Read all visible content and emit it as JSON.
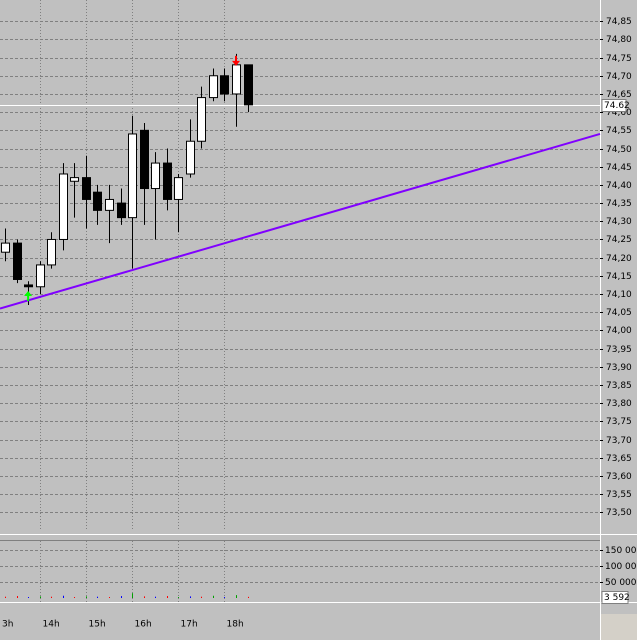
{
  "chart_data": [
    {
      "type": "candlestick",
      "categories": [
        "3h",
        null,
        null,
        "14h",
        null,
        null,
        null,
        "15h",
        null,
        null,
        null,
        "16h",
        null,
        null,
        null,
        "17h",
        null,
        null,
        null,
        "18h",
        null,
        null
      ],
      "open": [
        74.215,
        74.24,
        74.125,
        74.12,
        74.18,
        74.25,
        74.41,
        74.42,
        74.38,
        74.33,
        74.35,
        74.31,
        74.55,
        74.39,
        74.46,
        74.36,
        74.43,
        74.52,
        74.64,
        74.7,
        74.65,
        74.73
      ],
      "high": [
        74.28,
        74.25,
        74.135,
        74.19,
        74.27,
        74.46,
        74.46,
        74.48,
        74.4,
        74.4,
        74.39,
        74.59,
        74.57,
        74.49,
        74.5,
        74.43,
        74.58,
        74.67,
        74.72,
        74.72,
        74.76,
        74.73
      ],
      "low": [
        74.19,
        74.13,
        74.07,
        74.1,
        74.17,
        74.22,
        74.31,
        74.28,
        74.29,
        74.24,
        74.29,
        74.17,
        74.29,
        74.25,
        74.33,
        74.27,
        74.42,
        74.5,
        74.63,
        74.63,
        74.56,
        74.6
      ],
      "close": [
        74.24,
        74.14,
        74.12,
        74.18,
        74.25,
        74.43,
        74.42,
        74.36,
        74.33,
        74.36,
        74.31,
        74.54,
        74.39,
        74.46,
        74.36,
        74.42,
        74.52,
        74.64,
        74.7,
        74.65,
        74.73,
        74.62
      ],
      "up_color": "#ffffff",
      "down_color": "#000000",
      "ylim": [
        73.45,
        74.9
      ],
      "yticks": [
        {
          "value": 74.85,
          "label": "74,85"
        },
        {
          "value": 74.8,
          "label": "74,80"
        },
        {
          "value": 74.75,
          "label": "74,75"
        },
        {
          "value": 74.7,
          "label": "74,70"
        },
        {
          "value": 74.65,
          "label": "74,65"
        },
        {
          "value": 74.6,
          "label": "74,60"
        },
        {
          "value": 74.55,
          "label": "74,55"
        },
        {
          "value": 74.5,
          "label": "74,50"
        },
        {
          "value": 74.45,
          "label": "74,45"
        },
        {
          "value": 74.4,
          "label": "74,40"
        },
        {
          "value": 74.35,
          "label": "74,35"
        },
        {
          "value": 74.3,
          "label": "74,30"
        },
        {
          "value": 74.25,
          "label": "74,25"
        },
        {
          "value": 74.2,
          "label": "74,20"
        },
        {
          "value": 74.15,
          "label": "74,15"
        },
        {
          "value": 74.1,
          "label": "74,10"
        },
        {
          "value": 74.05,
          "label": "74,05"
        },
        {
          "value": 74.0,
          "label": "74,00"
        },
        {
          "value": 73.95,
          "label": "73,95"
        },
        {
          "value": 73.9,
          "label": "73,90"
        },
        {
          "value": 73.85,
          "label": "73,85"
        },
        {
          "value": 73.8,
          "label": "73,80"
        },
        {
          "value": 73.75,
          "label": "73,75"
        },
        {
          "value": 73.7,
          "label": "73,70"
        },
        {
          "value": 73.65,
          "label": "73,65"
        },
        {
          "value": 73.6,
          "label": "73,60"
        },
        {
          "value": 73.55,
          "label": "73,55"
        },
        {
          "value": 73.5,
          "label": "73,50"
        }
      ],
      "grid": true,
      "last_price": {
        "value": 74.62,
        "label": "74.62"
      },
      "trendline": {
        "color": "#8000ff",
        "from": 74.06,
        "to": 74.54
      }
    },
    {
      "type": "bar",
      "values": [
        4000,
        6000,
        3000,
        5000,
        4000,
        7000,
        3000,
        5000,
        4000,
        3000,
        6000,
        15000,
        5000,
        4000,
        6000,
        3000,
        5000,
        4000,
        7000,
        3000,
        9000,
        3592
      ],
      "colors": [
        "#ff0000",
        "#ff0000",
        "#0000ff",
        "#00a000",
        "#ff0000",
        "#0000ff",
        "#ff0000",
        "#00a000",
        "#0000ff",
        "#ff0000",
        "#0000ff",
        "#00a000",
        "#ff0000",
        "#0000ff",
        "#ff0000",
        "#00a000",
        "#0000ff",
        "#ff0000",
        "#00a000",
        "#0000ff",
        "#00a000",
        "#ff0000"
      ],
      "ylim": [
        0,
        180000
      ],
      "yticks": [
        {
          "value": 150000,
          "label": "150 000"
        },
        {
          "value": 100000,
          "label": "100 000"
        },
        {
          "value": 50000,
          "label": "50 000"
        }
      ],
      "last_value": {
        "value": 3592,
        "label": "3 592"
      }
    }
  ]
}
